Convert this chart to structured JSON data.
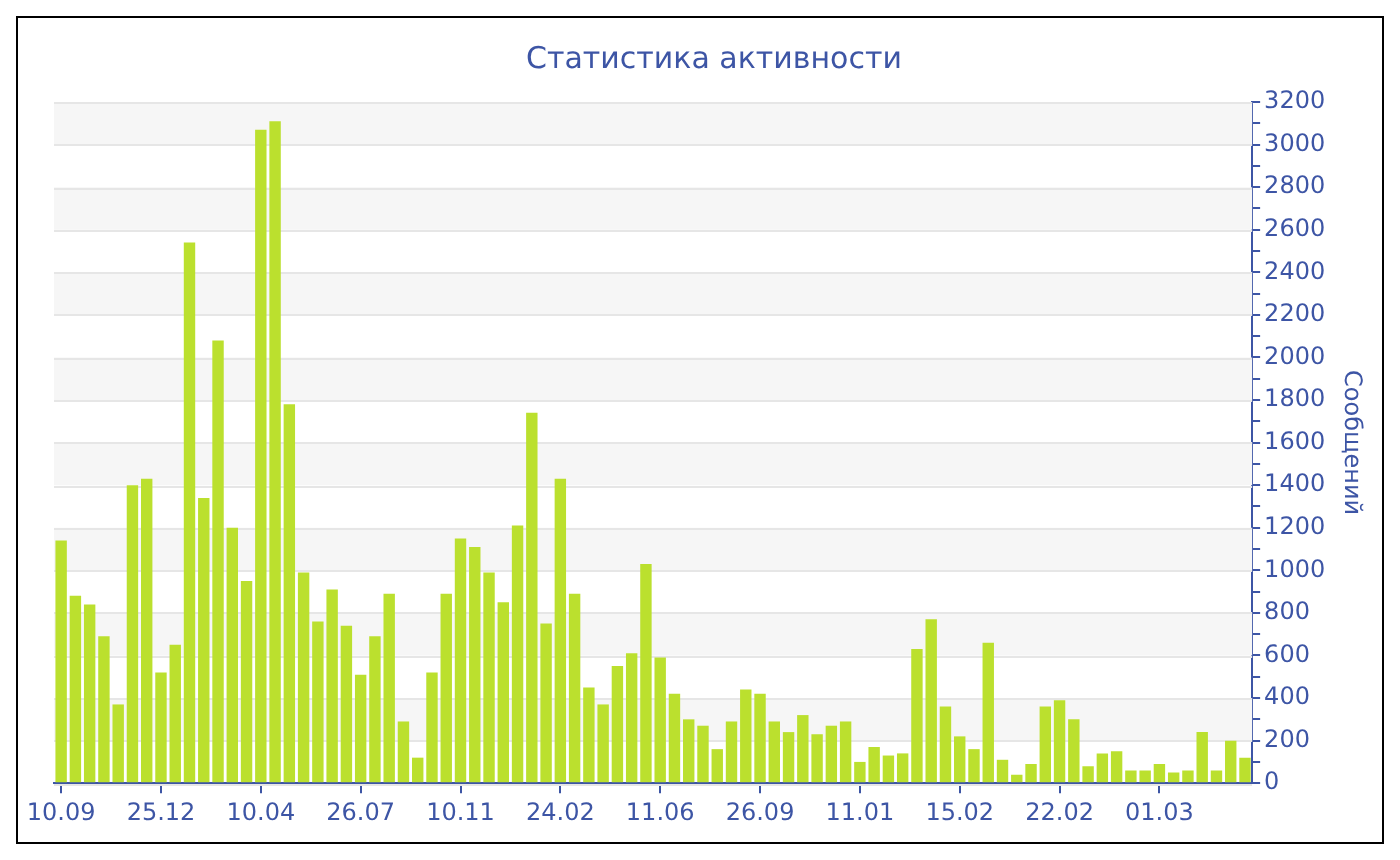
{
  "chart_data": {
    "type": "bar",
    "title": "Статистика активности",
    "ylabel": "Сообщений",
    "categories": [
      "10.09",
      null,
      null,
      null,
      null,
      null,
      null,
      "25.12",
      null,
      null,
      null,
      null,
      null,
      null,
      "10.04",
      null,
      null,
      null,
      null,
      null,
      null,
      "26.07",
      null,
      null,
      null,
      null,
      null,
      null,
      "10.11",
      null,
      null,
      null,
      null,
      null,
      null,
      "24.02",
      null,
      null,
      null,
      null,
      null,
      null,
      "11.06",
      null,
      null,
      null,
      null,
      null,
      null,
      "26.09",
      null,
      null,
      null,
      null,
      null,
      null,
      "11.01",
      null,
      null,
      null,
      null,
      null,
      null,
      "15.02",
      null,
      null,
      null,
      null,
      null,
      null,
      "22.02",
      null,
      null,
      null,
      null,
      null,
      null,
      "01.03",
      null,
      null,
      null,
      null,
      null,
      null
    ],
    "values": [
      1140,
      880,
      840,
      690,
      370,
      1400,
      1430,
      520,
      650,
      2540,
      1340,
      2080,
      1200,
      950,
      3070,
      3110,
      1780,
      990,
      760,
      910,
      740,
      510,
      690,
      890,
      290,
      120,
      520,
      890,
      1150,
      1110,
      990,
      850,
      1210,
      1740,
      750,
      1430,
      890,
      450,
      370,
      550,
      610,
      1030,
      590,
      420,
      300,
      270,
      160,
      290,
      440,
      420,
      290,
      240,
      320,
      230,
      270,
      290,
      100,
      170,
      130,
      140,
      630,
      770,
      360,
      220,
      160,
      660,
      110,
      40,
      90,
      360,
      390,
      300,
      80,
      140,
      150,
      60,
      60,
      90,
      50,
      60,
      240,
      60,
      200,
      120
    ],
    "color": "#bbe02e",
    "ylim": [
      0,
      3200
    ],
    "yticks": [
      0,
      {
        "value": 100,
        "label": null
      },
      200,
      {
        "value": 300,
        "label": null
      },
      400,
      {
        "value": 500,
        "label": null
      },
      600,
      {
        "value": 700,
        "label": null
      },
      800,
      {
        "value": 900,
        "label": null
      },
      1000,
      {
        "value": 1100,
        "label": null
      },
      1200,
      {
        "value": 1300,
        "label": null
      },
      1400,
      {
        "value": 1500,
        "label": null
      },
      1600,
      {
        "value": 1700,
        "label": null
      },
      1800,
      {
        "value": 1900,
        "label": null
      },
      2000,
      {
        "value": 2100,
        "label": null
      },
      2200,
      {
        "value": 2300,
        "label": null
      },
      2400,
      {
        "value": 2500,
        "label": null
      },
      2600,
      {
        "value": 2700,
        "label": null
      },
      2800,
      {
        "value": 2900,
        "label": null
      },
      3000,
      {
        "value": 3100,
        "label": null
      },
      3200
    ],
    "grid": "y",
    "legend": false
  }
}
